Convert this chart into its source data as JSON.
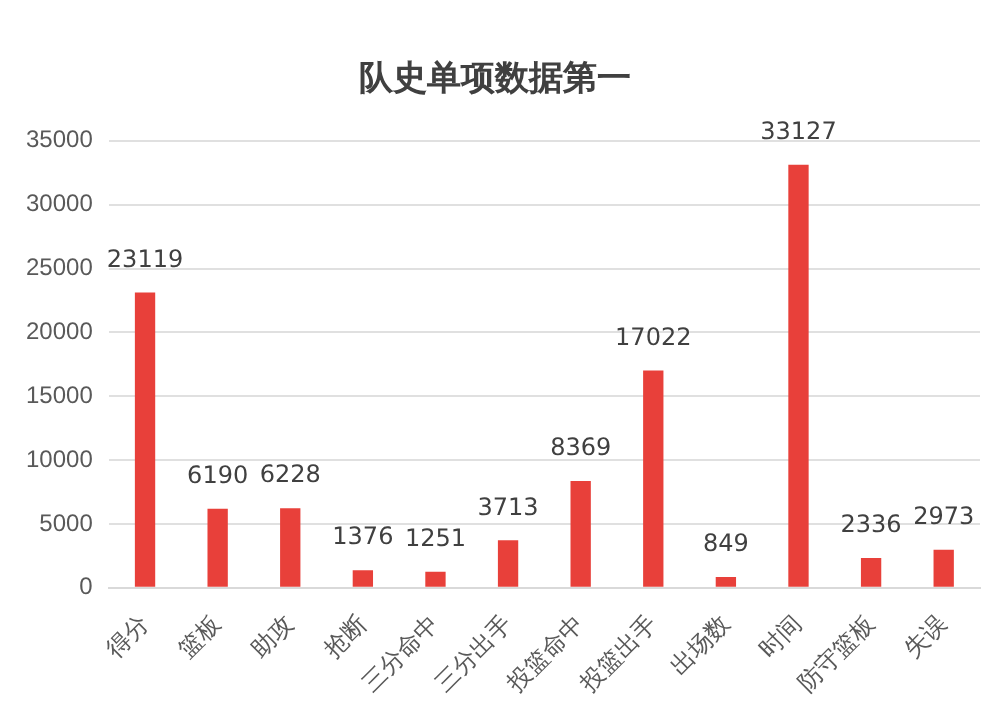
{
  "chart_data": {
    "type": "bar",
    "title": "队史单项数据第一",
    "categories": [
      "得分",
      "篮板",
      "助攻",
      "抢断",
      "三分命中",
      "三分出手",
      "投篮命中",
      "投篮出手",
      "出场数",
      "时间",
      "防守篮板",
      "失误"
    ],
    "values": [
      23119,
      6190,
      6228,
      1376,
      1251,
      3713,
      8369,
      17022,
      849,
      33127,
      2336,
      2973
    ],
    "color": "#e8403a",
    "ylim": [
      0,
      35000
    ],
    "yticks": [
      0,
      5000,
      10000,
      15000,
      20000,
      25000,
      30000,
      35000
    ],
    "grid": "y",
    "data_labels": true,
    "legend": false
  }
}
